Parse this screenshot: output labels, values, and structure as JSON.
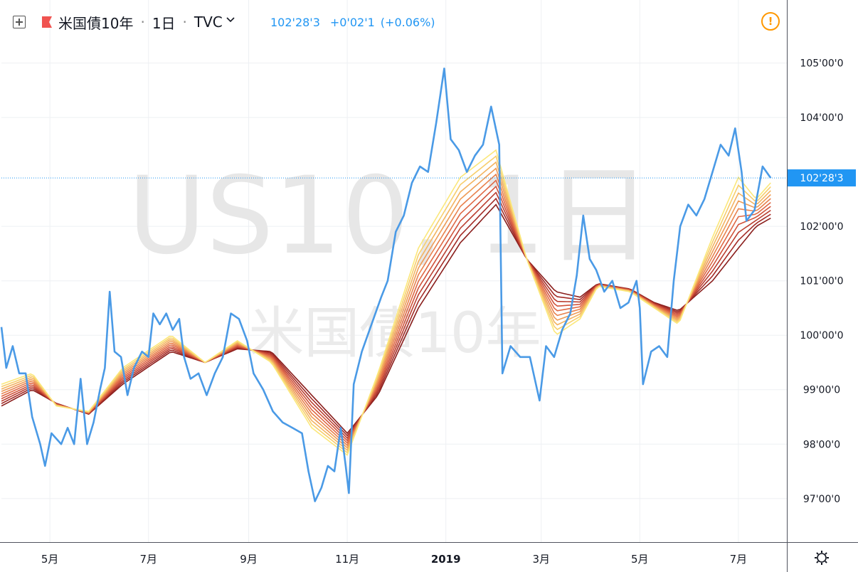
{
  "header": {
    "add_icon": "plus-square-icon",
    "flag_icon": "flag-icon",
    "symbol_name": "米国債10年",
    "sep1": "·",
    "interval": "1日",
    "sep2": "·",
    "source": "TVC",
    "source_menu_icon": "chevron-down-icon",
    "price": "102'28'3",
    "change": "+0'02'1",
    "change_pct": "(+0.06%)",
    "alert_icon": "exclamation-circle-icon",
    "alert_glyph": "!"
  },
  "watermark": {
    "line1": "US10, 1日",
    "line2": "米国債10年"
  },
  "settings_icon": "gear-icon",
  "colors": {
    "price_line": "#4a9ae6",
    "last_price_bg": "#2196f3",
    "alert": "#ff9800",
    "ribbon": [
      "#fbe77a",
      "#f7ce6c",
      "#f3b360",
      "#ee9b56",
      "#e8814d",
      "#df6844",
      "#d0523a",
      "#bb3f31",
      "#a32b26",
      "#8a1e1c"
    ]
  },
  "chart_data": {
    "type": "line",
    "y_scale": "linear, decimal values (price shown in 32nds)",
    "ylim": [
      96.2,
      105.4
    ],
    "xlim": [
      "2018-04-01",
      "2019-07-31"
    ],
    "grid": true,
    "y_ticks": [
      {
        "v": 105,
        "label": "105'00'0"
      },
      {
        "v": 104,
        "label": "104'00'0"
      },
      {
        "v": 102,
        "label": "102'00'0"
      },
      {
        "v": 101,
        "label": "101'00'0"
      },
      {
        "v": 100,
        "label": "100'00'0"
      },
      {
        "v": 99,
        "label": "99'00'0"
      },
      {
        "v": 98,
        "label": "98'00'0"
      },
      {
        "v": 97,
        "label": "97'00'0"
      }
    ],
    "x_ticks": [
      {
        "date": "2018-05-01",
        "label": "5月"
      },
      {
        "date": "2018-07-01",
        "label": "7月"
      },
      {
        "date": "2018-09-01",
        "label": "9月"
      },
      {
        "date": "2018-11-01",
        "label": "11月"
      },
      {
        "date": "2019-01-01",
        "label": "2019",
        "bold": true
      },
      {
        "date": "2019-03-01",
        "label": "3月"
      },
      {
        "date": "2019-05-01",
        "label": "5月"
      },
      {
        "date": "2019-07-01",
        "label": "7月"
      }
    ],
    "last_price": {
      "value": 102.89,
      "label": "102'28'3"
    },
    "series": [
      {
        "points": [
          [
            "2018-04-01",
            100.15
          ],
          [
            "2018-04-04",
            99.4
          ],
          [
            "2018-04-08",
            99.8
          ],
          [
            "2018-04-12",
            99.3
          ],
          [
            "2018-04-16",
            99.3
          ],
          [
            "2018-04-20",
            98.5
          ],
          [
            "2018-04-25",
            98.0
          ],
          [
            "2018-04-28",
            97.6
          ],
          [
            "2018-05-02",
            98.2
          ],
          [
            "2018-05-08",
            98.0
          ],
          [
            "2018-05-12",
            98.3
          ],
          [
            "2018-05-16",
            98.0
          ],
          [
            "2018-05-20",
            99.2
          ],
          [
            "2018-05-24",
            98.0
          ],
          [
            "2018-05-28",
            98.4
          ],
          [
            "2018-06-01",
            99.0
          ],
          [
            "2018-06-04",
            99.4
          ],
          [
            "2018-06-07",
            100.8
          ],
          [
            "2018-06-10",
            99.7
          ],
          [
            "2018-06-14",
            99.6
          ],
          [
            "2018-06-18",
            98.9
          ],
          [
            "2018-06-22",
            99.4
          ],
          [
            "2018-06-27",
            99.7
          ],
          [
            "2018-07-01",
            99.6
          ],
          [
            "2018-07-04",
            100.4
          ],
          [
            "2018-07-08",
            100.2
          ],
          [
            "2018-07-12",
            100.4
          ],
          [
            "2018-07-16",
            100.1
          ],
          [
            "2018-07-20",
            100.3
          ],
          [
            "2018-07-23",
            99.6
          ],
          [
            "2018-07-27",
            99.2
          ],
          [
            "2018-08-01",
            99.3
          ],
          [
            "2018-08-06",
            98.9
          ],
          [
            "2018-08-11",
            99.3
          ],
          [
            "2018-08-16",
            99.6
          ],
          [
            "2018-08-21",
            100.4
          ],
          [
            "2018-08-26",
            100.3
          ],
          [
            "2018-08-31",
            99.9
          ],
          [
            "2018-09-04",
            99.3
          ],
          [
            "2018-09-10",
            99.0
          ],
          [
            "2018-09-16",
            98.6
          ],
          [
            "2018-09-22",
            98.4
          ],
          [
            "2018-09-28",
            98.3
          ],
          [
            "2018-10-04",
            98.2
          ],
          [
            "2018-10-08",
            97.5
          ],
          [
            "2018-10-12",
            96.95
          ],
          [
            "2018-10-16",
            97.2
          ],
          [
            "2018-10-20",
            97.6
          ],
          [
            "2018-10-24",
            97.5
          ],
          [
            "2018-10-28",
            98.3
          ],
          [
            "2018-10-31",
            97.6
          ],
          [
            "2018-11-02",
            97.1
          ],
          [
            "2018-11-05",
            99.1
          ],
          [
            "2018-11-10",
            99.7
          ],
          [
            "2018-11-16",
            100.2
          ],
          [
            "2018-11-22",
            100.7
          ],
          [
            "2018-11-26",
            101.0
          ],
          [
            "2018-12-01",
            101.9
          ],
          [
            "2018-12-06",
            102.2
          ],
          [
            "2018-12-11",
            102.8
          ],
          [
            "2018-12-16",
            103.1
          ],
          [
            "2018-12-21",
            103.0
          ],
          [
            "2018-12-26",
            103.9
          ],
          [
            "2018-12-31",
            104.9
          ],
          [
            "2019-01-04",
            103.6
          ],
          [
            "2019-01-09",
            103.4
          ],
          [
            "2019-01-14",
            103.0
          ],
          [
            "2019-01-19",
            103.3
          ],
          [
            "2019-01-24",
            103.5
          ],
          [
            "2019-01-29",
            104.2
          ],
          [
            "2019-02-03",
            103.5
          ],
          [
            "2019-02-05",
            99.3
          ],
          [
            "2019-02-10",
            99.8
          ],
          [
            "2019-02-16",
            99.6
          ],
          [
            "2019-02-22",
            99.6
          ],
          [
            "2019-02-28",
            98.8
          ],
          [
            "2019-03-04",
            99.8
          ],
          [
            "2019-03-09",
            99.6
          ],
          [
            "2019-03-14",
            100.1
          ],
          [
            "2019-03-19",
            100.4
          ],
          [
            "2019-03-23",
            101.1
          ],
          [
            "2019-03-27",
            102.2
          ],
          [
            "2019-03-31",
            101.4
          ],
          [
            "2019-04-04",
            101.2
          ],
          [
            "2019-04-09",
            100.8
          ],
          [
            "2019-04-14",
            101.0
          ],
          [
            "2019-04-19",
            100.5
          ],
          [
            "2019-04-24",
            100.6
          ],
          [
            "2019-04-29",
            101.0
          ],
          [
            "2019-05-01",
            100.5
          ],
          [
            "2019-05-03",
            99.1
          ],
          [
            "2019-05-08",
            99.7
          ],
          [
            "2019-05-13",
            99.8
          ],
          [
            "2019-05-18",
            99.6
          ],
          [
            "2019-05-22",
            101.0
          ],
          [
            "2019-05-26",
            102.0
          ],
          [
            "2019-05-31",
            102.4
          ],
          [
            "2019-06-05",
            102.2
          ],
          [
            "2019-06-10",
            102.5
          ],
          [
            "2019-06-15",
            103.0
          ],
          [
            "2019-06-20",
            103.5
          ],
          [
            "2019-06-25",
            103.3
          ],
          [
            "2019-06-29",
            103.8
          ],
          [
            "2019-07-03",
            103.0
          ],
          [
            "2019-07-06",
            102.1
          ],
          [
            "2019-07-11",
            102.3
          ],
          [
            "2019-07-16",
            103.1
          ],
          [
            "2019-07-21",
            102.89
          ]
        ]
      },
      {
        "points": [
          [
            "2018-04-01",
            99.1
          ],
          [
            "2018-04-20",
            99.3
          ],
          [
            "2018-05-05",
            98.7
          ],
          [
            "2018-05-25",
            98.6
          ],
          [
            "2018-06-15",
            99.4
          ],
          [
            "2018-07-15",
            100.0
          ],
          [
            "2018-08-05",
            99.5
          ],
          [
            "2018-08-25",
            99.9
          ],
          [
            "2018-09-15",
            99.5
          ],
          [
            "2018-10-10",
            98.3
          ],
          [
            "2018-11-01",
            97.8
          ],
          [
            "2018-11-20",
            99.3
          ],
          [
            "2018-12-15",
            101.6
          ],
          [
            "2019-01-10",
            102.9
          ],
          [
            "2019-02-01",
            103.4
          ],
          [
            "2019-02-20",
            101.4
          ],
          [
            "2019-03-10",
            100.0
          ],
          [
            "2019-03-25",
            100.3
          ],
          [
            "2019-04-05",
            100.9
          ],
          [
            "2019-04-25",
            100.8
          ],
          [
            "2019-05-10",
            100.5
          ],
          [
            "2019-05-25",
            100.2
          ],
          [
            "2019-06-15",
            101.8
          ],
          [
            "2019-07-01",
            102.9
          ],
          [
            "2019-07-12",
            102.5
          ],
          [
            "2019-07-21",
            102.8
          ]
        ]
      },
      {
        "points": [
          [
            "2018-04-01",
            98.7
          ],
          [
            "2018-04-20",
            99.0
          ],
          [
            "2018-05-05",
            98.75
          ],
          [
            "2018-05-25",
            98.55
          ],
          [
            "2018-06-15",
            99.1
          ],
          [
            "2018-07-15",
            99.7
          ],
          [
            "2018-08-05",
            99.5
          ],
          [
            "2018-08-25",
            99.75
          ],
          [
            "2018-09-15",
            99.7
          ],
          [
            "2018-10-10",
            98.9
          ],
          [
            "2018-11-01",
            98.2
          ],
          [
            "2018-11-20",
            98.9
          ],
          [
            "2018-12-15",
            100.5
          ],
          [
            "2019-01-10",
            101.7
          ],
          [
            "2019-02-01",
            102.4
          ],
          [
            "2019-02-20",
            101.4
          ],
          [
            "2019-03-10",
            100.8
          ],
          [
            "2019-03-25",
            100.7
          ],
          [
            "2019-04-05",
            100.95
          ],
          [
            "2019-04-25",
            100.85
          ],
          [
            "2019-05-10",
            100.6
          ],
          [
            "2019-05-25",
            100.45
          ],
          [
            "2019-06-15",
            101.0
          ],
          [
            "2019-07-01",
            101.6
          ],
          [
            "2019-07-12",
            102.0
          ],
          [
            "2019-07-21",
            102.15
          ]
        ]
      }
    ]
  }
}
